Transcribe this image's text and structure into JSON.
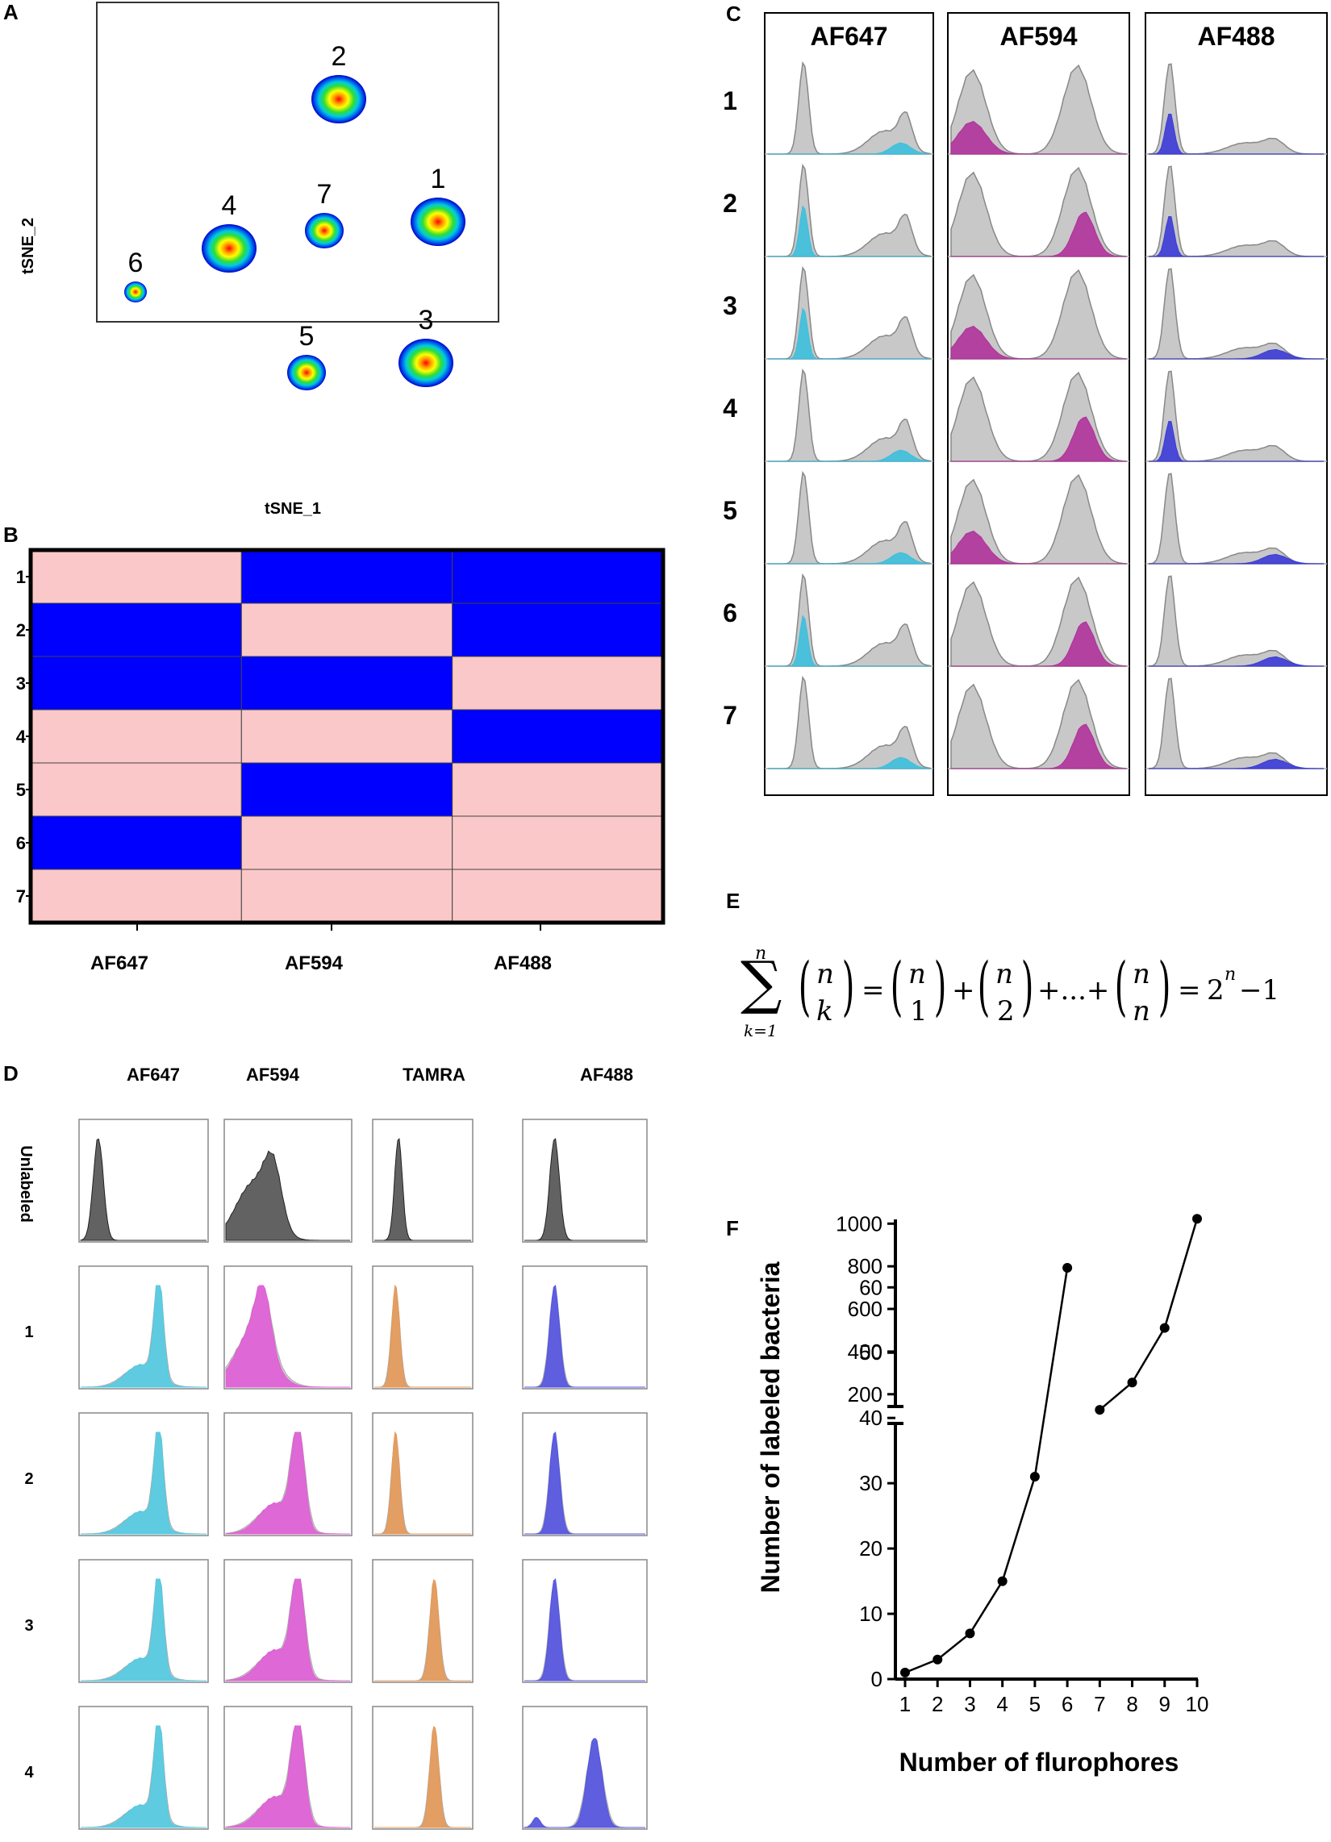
{
  "panels": {
    "A": {
      "label": "A",
      "xlabel": "tSNE_1",
      "ylabel": "tSNE_2",
      "clusters": [
        {
          "id": "1",
          "size": "large"
        },
        {
          "id": "2",
          "size": "large"
        },
        {
          "id": "3",
          "size": "large"
        },
        {
          "id": "4",
          "size": "large"
        },
        {
          "id": "5",
          "size": "medium"
        },
        {
          "id": "6",
          "size": "small"
        },
        {
          "id": "7",
          "size": "medium"
        }
      ]
    },
    "B": {
      "label": "B",
      "columns": [
        "AF647",
        "AF594",
        "AF488"
      ],
      "rows": [
        "1",
        "2",
        "3",
        "4",
        "5",
        "6",
        "7"
      ],
      "matrix": [
        [
          "pink",
          "blue",
          "blue"
        ],
        [
          "blue",
          "pink",
          "blue"
        ],
        [
          "blue",
          "blue",
          "pink"
        ],
        [
          "pink",
          "pink",
          "blue"
        ],
        [
          "pink",
          "blue",
          "pink"
        ],
        [
          "blue",
          "pink",
          "pink"
        ],
        [
          "pink",
          "pink",
          "pink"
        ]
      ],
      "colors": {
        "pink": "#fac8c8",
        "blue": "#0000ff"
      }
    },
    "C": {
      "label": "C",
      "columns": [
        "AF647",
        "AF594",
        "AF488"
      ],
      "rows": [
        "1",
        "2",
        "3",
        "4",
        "5",
        "6",
        "7"
      ],
      "colors": {
        "AF647": "#3cbfdd",
        "AF594": "#b0329a",
        "AF488": "#3b3bd6",
        "background": "#c8c8c8"
      },
      "highlight": [
        [
          "high",
          "low",
          "low"
        ],
        [
          "low",
          "high",
          "low"
        ],
        [
          "low",
          "low",
          "high"
        ],
        [
          "high",
          "high",
          "low"
        ],
        [
          "high",
          "low",
          "high"
        ],
        [
          "low",
          "high",
          "high"
        ],
        [
          "high",
          "high",
          "high"
        ]
      ]
    },
    "D": {
      "label": "D",
      "columns": [
        "AF647",
        "AF594",
        "TAMRA",
        "AF488"
      ],
      "rows": [
        "Unlabeled",
        "1",
        "2",
        "3",
        "4"
      ],
      "colors": {
        "AF647": "#55cbe2",
        "AF594": "#e060d6",
        "TAMRA": "#e49a5a",
        "AF488": "#5555e0",
        "unlabeled": "#555555"
      }
    },
    "E": {
      "label": "E",
      "formula": {
        "sum_top": "n",
        "sum_bottom": "k=1",
        "binom_top": "n",
        "binom_k": "k",
        "eq": "=",
        "plus": "+",
        "dots": "+...+",
        "terms_bottom": [
          "1",
          "2",
          "n"
        ],
        "rhs_base": "2",
        "rhs_exp": "n",
        "rhs_tail": "−1"
      }
    },
    "F": {
      "label": "F"
    }
  },
  "chart_data": {
    "type": "line",
    "title": "",
    "xlabel": "Number of flurophores",
    "ylabel": "Number of labeled bacteria",
    "x": [
      1,
      2,
      3,
      4,
      5,
      6,
      7,
      8,
      9,
      10
    ],
    "y": [
      1,
      3,
      7,
      15,
      31,
      63,
      127,
      255,
      511,
      1023
    ],
    "x_ticks": [
      "1",
      "2",
      "3",
      "4",
      "5",
      "6",
      "7",
      "8",
      "9",
      "10"
    ],
    "y_axis_break": true,
    "lower_ylim": [
      0,
      63
    ],
    "lower_y_ticks": [
      "0",
      "10",
      "20",
      "30",
      "40",
      "50",
      "60"
    ],
    "upper_ylim": [
      150,
      1020
    ],
    "upper_y_ticks": [
      "200",
      "400",
      "600",
      "800",
      "1000"
    ]
  }
}
